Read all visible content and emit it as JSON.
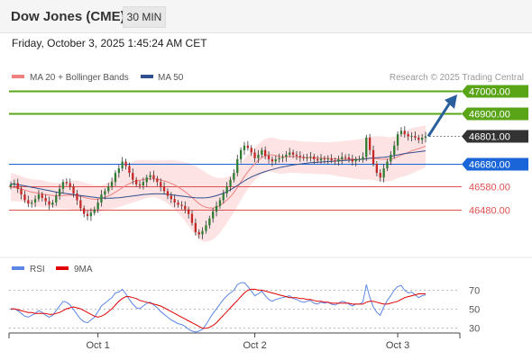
{
  "header": {
    "title": "Dow Jones (CME)",
    "timeframe": "30 MIN",
    "datetime": "Friday, October 3, 2025 1:45:24 AM CET"
  },
  "legend": {
    "ma20_label": "MA 20 + Bollinger Bands",
    "ma50_label": "MA 50",
    "source": "Research © 2025 Trading Central",
    "rsi_label": "RSI",
    "rsi_ma_label": "9MA"
  },
  "colors": {
    "up": "#2e7d32",
    "down": "#c62828",
    "ma20": "#f08080",
    "ma50": "#2f4f8f",
    "bollinger": "#fddede",
    "target": "#5aa417",
    "current": "#333333",
    "pivot": "#1a66d9",
    "support": "#e05050",
    "arrow": "#2a5f9e",
    "rsi": "#5b86e5",
    "rsi_ma": "#e00000"
  },
  "chart_data": [
    {
      "type": "candlestick",
      "title": "Dow Jones (CME)",
      "x_ticks": [
        "Oct 1",
        "Oct 2",
        "Oct 3"
      ],
      "ylim": [
        46340,
        47020
      ],
      "levels": [
        {
          "value": 47000.0,
          "label": "47000.00",
          "kind": "target"
        },
        {
          "value": 46900.0,
          "label": "46900.00",
          "kind": "target"
        },
        {
          "value": 46801.0,
          "label": "46801.00",
          "kind": "current"
        },
        {
          "value": 46680.0,
          "label": "46680.00",
          "kind": "pivot"
        },
        {
          "value": 46580.0,
          "label": "46580.00",
          "kind": "support"
        },
        {
          "value": 46480.0,
          "label": "46480.00",
          "kind": "support"
        }
      ],
      "close": [
        46590,
        46595,
        46570,
        46545,
        46520,
        46505,
        46510,
        46525,
        46545,
        46530,
        46515,
        46500,
        46510,
        46540,
        46570,
        46600,
        46595,
        46580,
        46550,
        46520,
        46485,
        46460,
        46450,
        46465,
        46480,
        46510,
        46545,
        46560,
        46580,
        46600,
        46640,
        46660,
        46690,
        46670,
        46640,
        46610,
        46590,
        46585,
        46600,
        46620,
        46630,
        46615,
        46600,
        46580,
        46560,
        46540,
        46525,
        46510,
        46500,
        46495,
        46480,
        46460,
        46420,
        46380,
        46370,
        46385,
        46410,
        46440,
        46470,
        46495,
        46520,
        46550,
        46580,
        46610,
        46640,
        46700,
        46740,
        46760,
        46750,
        46730,
        46705,
        46720,
        46740,
        46715,
        46700,
        46690,
        46700,
        46705,
        46710,
        46720,
        46730,
        46720,
        46715,
        46710,
        46705,
        46708,
        46712,
        46700,
        46695,
        46703,
        46700,
        46702,
        46695,
        46690,
        46700,
        46710,
        46708,
        46700,
        46690,
        46700,
        46700,
        46710,
        46795,
        46740,
        46680,
        46640,
        46620,
        46660,
        46690,
        46720,
        46760,
        46810,
        46825,
        46810,
        46800,
        46802,
        46795,
        46785,
        46795,
        46801
      ],
      "ma20": [
        46578,
        46576,
        46573,
        46570,
        46565,
        46560,
        46556,
        46553,
        46550,
        46548,
        46545,
        46543,
        46541,
        46540,
        46540,
        46541,
        46542,
        46543,
        46542,
        46540,
        46537,
        46533,
        46529,
        46526,
        46524,
        46525,
        46528,
        46533,
        46539,
        46546,
        46555,
        46565,
        46575,
        46585,
        46593,
        46600,
        46605,
        46608,
        46611,
        46613,
        46614,
        46614,
        46612,
        46609,
        46605,
        46600,
        46594,
        46587,
        46578,
        46568,
        46557,
        46545,
        46532,
        46518,
        46505,
        46495,
        46489,
        46486,
        46486,
        46490,
        46497,
        46508,
        46521,
        46536,
        46554,
        46576,
        46600,
        46624,
        46645,
        46664,
        46680,
        46695,
        46707,
        46715,
        46719,
        46719,
        46716,
        46712,
        46711,
        46711,
        46712,
        46712,
        46711,
        46709,
        46708,
        46707,
        46707,
        46706,
        46705,
        46705,
        46704,
        46704,
        46703,
        46702,
        46701,
        46701,
        46701,
        46701,
        46700,
        46700,
        46700,
        46700,
        46703,
        46705,
        46705,
        46703,
        46701,
        46700,
        46700,
        46701,
        46705,
        46711,
        46718,
        46724,
        46730,
        46737,
        46742,
        46747,
        46752,
        46758
      ],
      "ma50": [
        46592,
        46590,
        46588,
        46586,
        46583,
        46580,
        46577,
        46574,
        46571,
        46568,
        46565,
        46562,
        46559,
        46556,
        46553,
        46551,
        46549,
        46547,
        46545,
        46543,
        46541,
        46539,
        46537,
        46535,
        46533,
        46531,
        46530,
        46529,
        46529,
        46529,
        46530,
        46531,
        46533,
        46535,
        46537,
        46539,
        46541,
        46543,
        46545,
        46546,
        46547,
        46548,
        46548,
        46548,
        46547,
        46546,
        46544,
        46542,
        46540,
        46538,
        46536,
        46534,
        46532,
        46531,
        46530,
        46530,
        46531,
        46533,
        46536,
        46540,
        46545,
        46551,
        46558,
        46566,
        46575,
        46585,
        46595,
        46605,
        46614,
        46622,
        46629,
        46635,
        46641,
        46646,
        46651,
        46655,
        46659,
        46663,
        46666,
        46669,
        46672,
        46675,
        46677,
        46679,
        46681,
        46683,
        46685,
        46686,
        46687,
        46688,
        46689,
        46690,
        46691,
        46692,
        46693,
        46694,
        46695,
        46696,
        46697,
        46698,
        46699,
        46700,
        46702,
        46704,
        46706,
        46707,
        46708,
        46709,
        46711,
        46713,
        46716,
        46719,
        46722,
        46725,
        46727,
        46729,
        46731,
        46733,
        46735,
        46737
      ],
      "band_width": [
        62,
        60,
        58,
        56,
        55,
        55,
        56,
        58,
        60,
        60,
        58,
        56,
        55,
        55,
        56,
        58,
        60,
        62,
        64,
        65,
        66,
        66,
        65,
        64,
        62,
        60,
        58,
        58,
        60,
        64,
        70,
        75,
        80,
        85,
        88,
        90,
        90,
        88,
        86,
        84,
        82,
        80,
        82,
        86,
        90,
        96,
        102,
        108,
        115,
        122,
        130,
        138,
        146,
        152,
        156,
        156,
        152,
        146,
        138,
        130,
        120,
        110,
        100,
        92,
        86,
        82,
        80,
        78,
        76,
        74,
        72,
        72,
        73,
        74,
        75,
        76,
        76,
        75,
        74,
        73,
        72,
        72,
        71,
        70,
        70,
        70,
        70,
        70,
        70,
        70,
        70,
        70,
        72,
        74,
        76,
        78,
        80,
        82,
        84,
        86,
        88,
        90,
        92,
        94,
        96,
        98,
        100,
        100,
        98,
        96,
        94,
        94,
        96,
        98,
        100,
        100,
        98,
        96,
        94,
        92
      ]
    },
    {
      "type": "line",
      "title": "RSI",
      "y_ticks": [
        "70",
        "50",
        "30"
      ],
      "ylim": [
        22,
        82
      ],
      "series": [
        {
          "name": "RSI",
          "values": [
            49,
            50,
            48,
            45,
            42,
            41,
            43,
            45,
            48,
            46,
            43,
            41,
            43,
            48,
            53,
            58,
            57,
            54,
            49,
            44,
            39,
            36,
            35,
            38,
            41,
            47,
            53,
            56,
            59,
            62,
            67,
            68,
            71,
            66,
            60,
            55,
            51,
            50,
            53,
            56,
            57,
            54,
            51,
            47,
            44,
            41,
            38,
            36,
            34,
            33,
            31,
            28,
            26,
            25,
            26,
            28,
            33,
            39,
            45,
            50,
            55,
            60,
            64,
            67,
            70,
            76,
            78,
            78,
            74,
            69,
            64,
            66,
            69,
            64,
            60,
            58,
            60,
            61,
            62,
            63,
            64,
            61,
            60,
            58,
            57,
            58,
            59,
            56,
            55,
            57,
            56,
            57,
            55,
            54,
            56,
            58,
            57,
            55,
            53,
            55,
            55,
            57,
            76,
            62,
            52,
            46,
            43,
            52,
            59,
            64,
            70,
            74,
            75,
            70,
            67,
            68,
            65,
            62,
            64,
            65
          ]
        },
        {
          "name": "9MA",
          "values": [
            50,
            50,
            49,
            48,
            47,
            46,
            46,
            45,
            45,
            45,
            45,
            44,
            44,
            45,
            46,
            48,
            50,
            51,
            52,
            51,
            50,
            48,
            46,
            44,
            42,
            41,
            42,
            44,
            47,
            50,
            54,
            58,
            61,
            63,
            63,
            62,
            61,
            59,
            58,
            57,
            56,
            55,
            54,
            53,
            51,
            49,
            47,
            45,
            43,
            41,
            39,
            37,
            35,
            33,
            31,
            29,
            29,
            30,
            32,
            35,
            39,
            43,
            47,
            51,
            55,
            59,
            63,
            67,
            70,
            71,
            71,
            70,
            70,
            69,
            68,
            67,
            66,
            65,
            64,
            63,
            62,
            62,
            62,
            61,
            61,
            60,
            60,
            59,
            58,
            58,
            57,
            57,
            56,
            56,
            56,
            56,
            56,
            56,
            55,
            55,
            55,
            55,
            57,
            58,
            58,
            57,
            56,
            55,
            55,
            56,
            57,
            58,
            60,
            62,
            63,
            64,
            65,
            66,
            66,
            66
          ]
        }
      ]
    }
  ]
}
